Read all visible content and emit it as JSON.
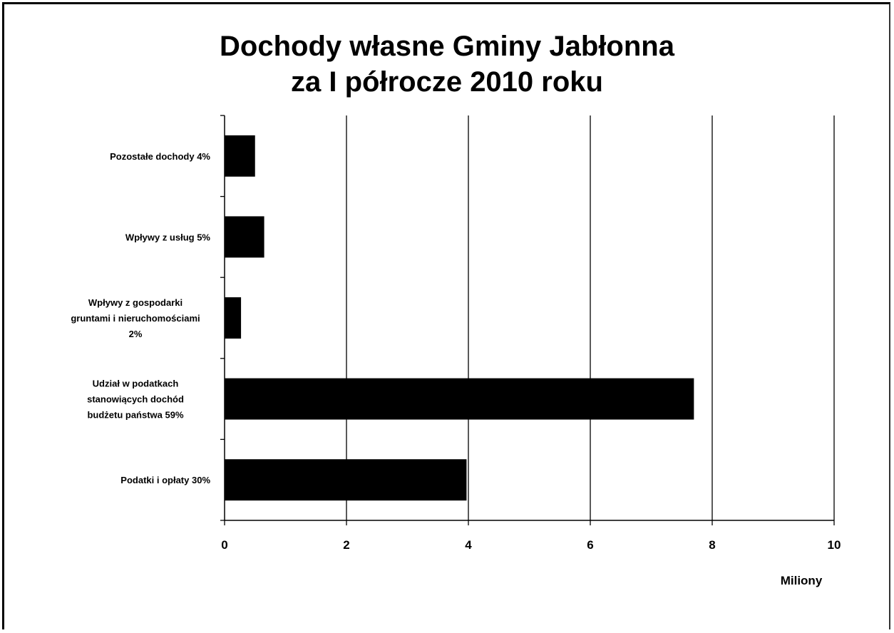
{
  "chart_data": {
    "type": "bar",
    "orientation": "horizontal",
    "title": "Dochody własne Gminy Jabłonna za I półrocze 2010 roku",
    "title_lines": [
      "Dochody własne Gminy Jabłonna",
      "za I półrocze 2010 roku"
    ],
    "categories": [
      "Pozostałe dochody 4%",
      "Wpływy z usług 5%",
      "Wpływy z gospodarki gruntami i nieruchomościami 2%",
      "Udział w podatkach stanowiących dochód budżetu państwa 59%",
      "Podatki i opłaty 30%"
    ],
    "category_label_lines": [
      [
        "Pozostałe dochody 4%"
      ],
      [
        "Wpływy z usług 5%"
      ],
      [
        "Wpływy z gospodarki",
        "gruntami i nieruchomościami",
        "2%"
      ],
      [
        "Udział w podatkach",
        "stanowiących dochód",
        "budżetu państwa 59%"
      ],
      [
        "Podatki i opłaty 30%"
      ]
    ],
    "values": [
      0.5,
      0.65,
      0.27,
      7.7,
      3.97
    ],
    "xlabel": "Miliony",
    "ylabel": "",
    "xlim": [
      0,
      10
    ],
    "x_ticks": [
      "0",
      "2",
      "4",
      "6",
      "8",
      "10"
    ],
    "x_tick_values": [
      0,
      2,
      4,
      6,
      8,
      10
    ],
    "grid": "vertical",
    "bar_color": "#000000"
  }
}
